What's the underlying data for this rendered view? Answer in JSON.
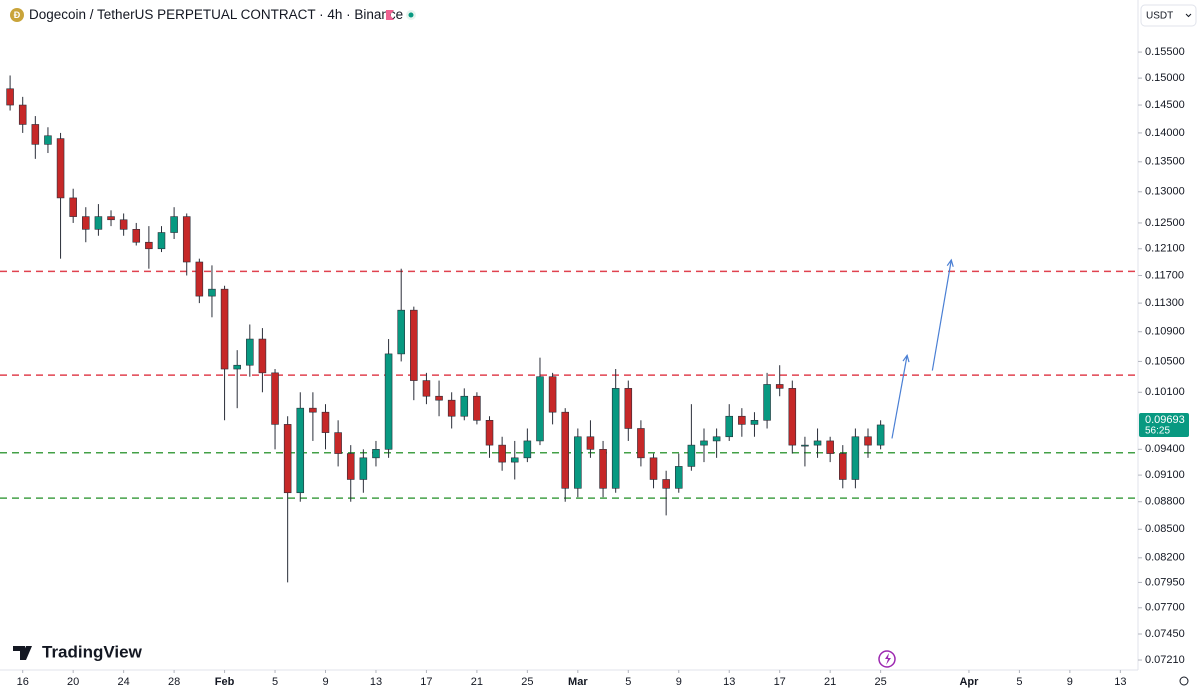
{
  "chart_data": {
    "type": "candlestick",
    "title": "Dogecoin / TetherUS PERPETUAL CONTRACT · 4h · Binance",
    "currency": "USDT",
    "brand": "TradingView",
    "countdown": "56:25",
    "log_scale": true,
    "up_color": "#089981",
    "down_color": "#c62828",
    "x": [
      -1,
      0,
      1,
      2,
      3,
      4,
      5,
      6,
      7,
      8,
      9,
      10,
      11,
      12,
      13,
      14,
      15,
      16,
      17,
      18,
      19,
      20,
      21,
      22,
      23,
      24,
      25,
      26,
      27,
      28,
      29,
      30,
      31,
      32,
      33,
      34,
      35,
      36,
      37,
      38,
      39,
      40,
      41,
      42,
      43,
      44,
      45,
      46,
      47,
      48,
      49,
      50,
      51,
      52,
      53,
      54,
      55,
      56,
      57,
      58,
      59,
      60,
      61,
      62,
      63,
      64,
      65,
      66,
      67,
      68
    ],
    "open": [
      0.148,
      0.145,
      0.1415,
      0.138,
      0.139,
      0.129,
      0.126,
      0.124,
      0.126,
      0.1255,
      0.124,
      0.122,
      0.121,
      0.1235,
      0.126,
      0.119,
      0.114,
      0.115,
      0.104,
      0.1045,
      0.108,
      0.1035,
      0.097,
      0.089,
      0.099,
      0.0985,
      0.096,
      0.0935,
      0.0905,
      0.093,
      0.094,
      0.106,
      0.112,
      0.1025,
      0.1005,
      0.1,
      0.098,
      0.1005,
      0.0975,
      0.0945,
      0.0925,
      0.093,
      0.095,
      0.103,
      0.0985,
      0.0895,
      0.0955,
      0.094,
      0.0895,
      0.1015,
      0.0965,
      0.093,
      0.0905,
      0.0895,
      0.092,
      0.0945,
      0.095,
      0.0955,
      0.098,
      0.097,
      0.0975,
      0.102,
      0.1015,
      0.0945,
      0.0945,
      0.095,
      0.0935,
      0.0905,
      0.0955,
      0.0945
    ],
    "high": [
      0.1505,
      0.1465,
      0.143,
      0.141,
      0.14,
      0.1305,
      0.1275,
      0.128,
      0.127,
      0.1265,
      0.125,
      0.1245,
      0.1245,
      0.1275,
      0.1265,
      0.1195,
      0.1185,
      0.1155,
      0.1065,
      0.11,
      0.1095,
      0.104,
      0.098,
      0.101,
      0.101,
      0.0995,
      0.0975,
      0.0945,
      0.094,
      0.095,
      0.108,
      0.118,
      0.1125,
      0.1035,
      0.1025,
      0.101,
      0.1015,
      0.101,
      0.098,
      0.0955,
      0.095,
      0.0965,
      0.1055,
      0.1035,
      0.099,
      0.0965,
      0.0975,
      0.095,
      0.104,
      0.1025,
      0.0975,
      0.0935,
      0.0915,
      0.0935,
      0.0995,
      0.0965,
      0.0965,
      0.0995,
      0.099,
      0.0985,
      0.1035,
      0.1045,
      0.1025,
      0.0955,
      0.0965,
      0.0955,
      0.0945,
      0.0965,
      0.0965,
      0.0975
    ],
    "low": [
      0.144,
      0.14,
      0.1355,
      0.1365,
      0.1195,
      0.125,
      0.122,
      0.123,
      0.1245,
      0.123,
      0.1215,
      0.118,
      0.1205,
      0.1225,
      0.117,
      0.113,
      0.111,
      0.0975,
      0.099,
      0.103,
      0.101,
      0.094,
      0.0795,
      0.088,
      0.095,
      0.094,
      0.092,
      0.088,
      0.089,
      0.092,
      0.093,
      0.105,
      0.1,
      0.0995,
      0.098,
      0.0965,
      0.0975,
      0.097,
      0.093,
      0.0915,
      0.0905,
      0.0925,
      0.0945,
      0.097,
      0.088,
      0.0885,
      0.093,
      0.0885,
      0.089,
      0.095,
      0.092,
      0.0895,
      0.0865,
      0.089,
      0.0915,
      0.0925,
      0.093,
      0.095,
      0.0955,
      0.0955,
      0.0965,
      0.1005,
      0.0935,
      0.092,
      0.093,
      0.0925,
      0.0895,
      0.0895,
      0.093,
      0.094
    ],
    "close": [
      0.145,
      0.1415,
      0.138,
      0.1395,
      0.129,
      0.126,
      0.124,
      0.126,
      0.1255,
      0.124,
      0.122,
      0.121,
      0.1235,
      0.126,
      0.119,
      0.114,
      0.115,
      0.104,
      0.1045,
      0.108,
      0.1035,
      0.097,
      0.089,
      0.099,
      0.0985,
      0.096,
      0.0935,
      0.0905,
      0.093,
      0.094,
      0.106,
      0.112,
      0.1025,
      0.1005,
      0.1,
      0.098,
      0.1005,
      0.0975,
      0.0945,
      0.0925,
      0.093,
      0.095,
      0.103,
      0.0985,
      0.0895,
      0.0955,
      0.094,
      0.0895,
      0.1015,
      0.0965,
      0.093,
      0.0905,
      0.0895,
      0.092,
      0.0945,
      0.095,
      0.0955,
      0.098,
      0.097,
      0.0975,
      0.102,
      0.1015,
      0.0945,
      0.0945,
      0.095,
      0.0935,
      0.0905,
      0.0955,
      0.0945,
      0.09693
    ],
    "xlim": [
      -1.8,
      88.4
    ],
    "ylim": [
      0.0712,
      0.1655
    ],
    "xticks": [
      {
        "value": 0,
        "label": "16"
      },
      {
        "value": 4,
        "label": "20"
      },
      {
        "value": 8,
        "label": "24"
      },
      {
        "value": 12,
        "label": "28"
      },
      {
        "value": 16,
        "label": "Feb"
      },
      {
        "value": 20,
        "label": "5"
      },
      {
        "value": 24,
        "label": "9"
      },
      {
        "value": 28,
        "label": "13"
      },
      {
        "value": 32,
        "label": "17"
      },
      {
        "value": 36,
        "label": "21"
      },
      {
        "value": 40,
        "label": "25"
      },
      {
        "value": 44,
        "label": "Mar"
      },
      {
        "value": 48,
        "label": "5"
      },
      {
        "value": 52,
        "label": "9"
      },
      {
        "value": 56,
        "label": "13"
      },
      {
        "value": 60,
        "label": "17"
      },
      {
        "value": 64,
        "label": "21"
      },
      {
        "value": 68,
        "label": "25"
      },
      {
        "value": 75,
        "label": "Apr"
      },
      {
        "value": 79,
        "label": "5"
      },
      {
        "value": 83,
        "label": "9"
      },
      {
        "value": 87,
        "label": "13"
      }
    ],
    "yticks": [
      {
        "value": 0.155,
        "label": "0.15500"
      },
      {
        "value": 0.15,
        "label": "0.15000"
      },
      {
        "value": 0.145,
        "label": "0.14500"
      },
      {
        "value": 0.14,
        "label": "0.14000"
      },
      {
        "value": 0.135,
        "label": "0.13500"
      },
      {
        "value": 0.13,
        "label": "0.13000"
      },
      {
        "value": 0.125,
        "label": "0.12500"
      },
      {
        "value": 0.121,
        "label": "0.12100"
      },
      {
        "value": 0.117,
        "label": "0.11700"
      },
      {
        "value": 0.113,
        "label": "0.11300"
      },
      {
        "value": 0.109,
        "label": "0.10900"
      },
      {
        "value": 0.105,
        "label": "0.10500"
      },
      {
        "value": 0.101,
        "label": "0.10100"
      },
      {
        "value": 0.094,
        "label": "0.09400"
      },
      {
        "value": 0.091,
        "label": "0.09100"
      },
      {
        "value": 0.088,
        "label": "0.08800"
      },
      {
        "value": 0.085,
        "label": "0.08500"
      },
      {
        "value": 0.082,
        "label": "0.08200"
      },
      {
        "value": 0.0795,
        "label": "0.07950"
      },
      {
        "value": 0.077,
        "label": "0.07700"
      },
      {
        "value": 0.0745,
        "label": "0.07450"
      },
      {
        "value": 0.0721,
        "label": "0.07210"
      }
    ],
    "levels": [
      {
        "value": 0.1176,
        "color": "#e0424f"
      },
      {
        "value": 0.1032,
        "color": "#e0424f"
      },
      {
        "value": 0.0936,
        "color": "#43a047"
      },
      {
        "value": 0.0884,
        "color": "#43a047"
      }
    ],
    "arrows": [
      {
        "x": [
          68.9,
          70.1
        ],
        "y": [
          0.0953,
          0.1058
        ],
        "color": "#4a7fd4"
      },
      {
        "x": [
          72.1,
          73.6
        ],
        "y": [
          0.1038,
          0.1193
        ],
        "color": "#4a7fd4"
      }
    ]
  }
}
